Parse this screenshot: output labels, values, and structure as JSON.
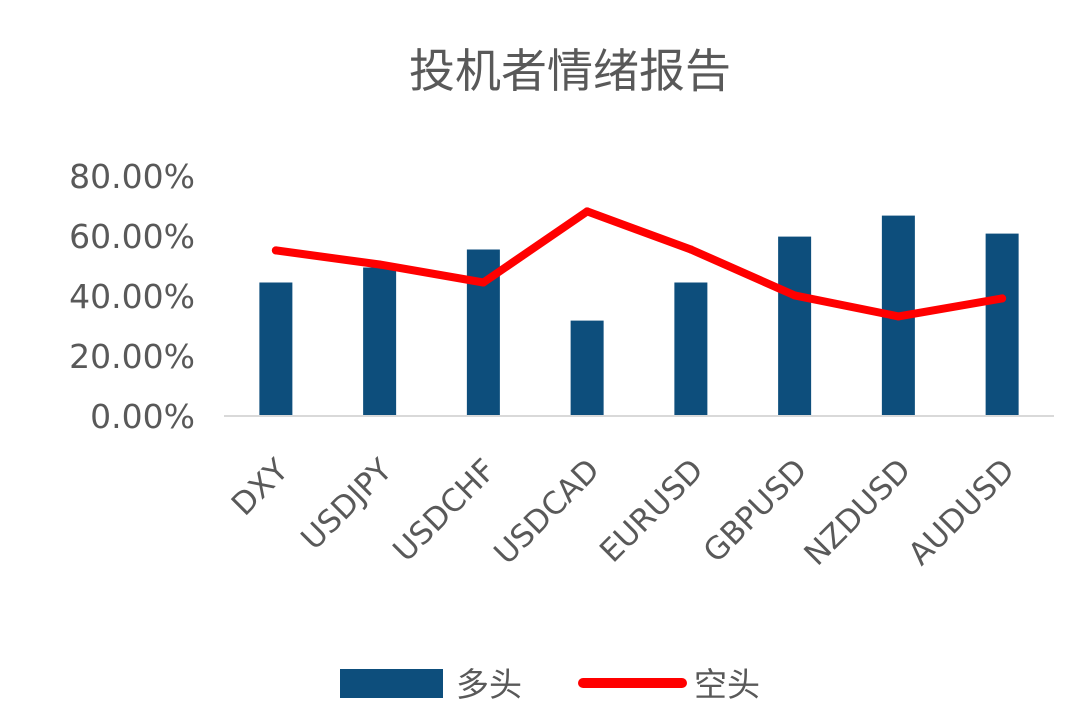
{
  "chart_data": {
    "type": "bar",
    "title": "投机者情绪报告",
    "categories": [
      "DXY",
      "USDJPY",
      "USDCHF",
      "USDCAD",
      "EURUSD",
      "GBPUSD",
      "NZDUSD",
      "AUDUSD"
    ],
    "series": [
      {
        "name": "多头",
        "kind": "bar",
        "color": "#0d4e7c",
        "values": [
          0.445,
          0.495,
          0.555,
          0.318,
          0.445,
          0.598,
          0.668,
          0.608
        ]
      },
      {
        "name": "空头",
        "kind": "line",
        "color": "#ff0000",
        "values": [
          0.552,
          0.505,
          0.445,
          0.682,
          0.555,
          0.402,
          0.332,
          0.392
        ]
      }
    ],
    "ylim": [
      0,
      0.8
    ],
    "yticks": [
      "0.00%",
      "20.00%",
      "40.00%",
      "60.00%",
      "80.00%"
    ],
    "grid": false,
    "legend": "bottom"
  }
}
